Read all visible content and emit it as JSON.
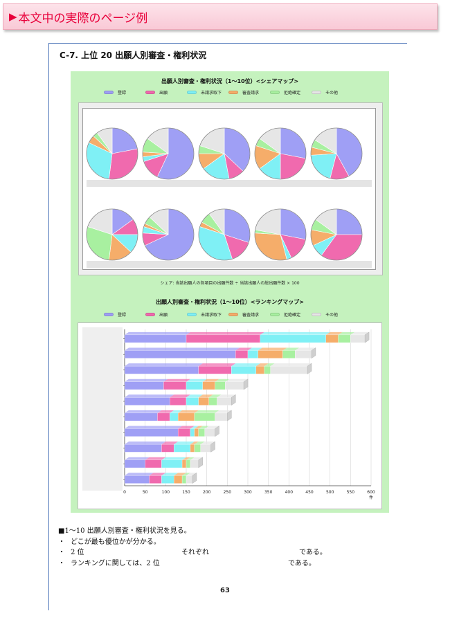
{
  "banner": {
    "marker": "▶",
    "title": "本文中の実際のページ例"
  },
  "section": {
    "title": "C-7.  上位 20 出願人別審査・権利状況"
  },
  "colors": {
    "登録": "#9f9ff5",
    "出願": "#f06aae",
    "未請求取下": "#7ff0f5",
    "審査請求": "#f5ad6a",
    "拒絶確定": "#a8f0a0",
    "その他": "#e6e6e6"
  },
  "legend_items": [
    "登録",
    "出願",
    "未請求取下",
    "審査請求",
    "拒絶確定",
    "その他"
  ],
  "chart_data": [
    {
      "type": "pie",
      "title": "出願人別審査・権利状況（1〜10位）<シェアマップ>",
      "series_names": [
        "登録",
        "出願",
        "未請求取下",
        "審査請求",
        "拒絶確定",
        "その他"
      ],
      "pies": [
        [
          22,
          30,
          30,
          5,
          3,
          10
        ],
        [
          57,
          13,
          3,
          3,
          9,
          15
        ],
        [
          37,
          10,
          18,
          10,
          5,
          20
        ],
        [
          28,
          22,
          15,
          15,
          5,
          15
        ],
        [
          42,
          12,
          20,
          5,
          5,
          16
        ],
        [
          15,
          10,
          12,
          15,
          28,
          20
        ],
        [
          68,
          8,
          4,
          2,
          5,
          13
        ],
        [
          30,
          15,
          35,
          3,
          7,
          10
        ],
        [
          28,
          15,
          3,
          30,
          2,
          22
        ],
        [
          25,
          35,
          8,
          10,
          7,
          15
        ]
      ],
      "note": "シェア: 当該出願人の各項目の出願件数 ÷ 当該出願人の総出願件数 × 100"
    },
    {
      "type": "bar",
      "title": "出願人別審査・権利状況（1〜10位）<ランキングマップ>",
      "orientation": "horizontal-stacked",
      "series_names": [
        "登録",
        "出願",
        "未請求取下",
        "審査請求",
        "拒絶確定",
        "その他"
      ],
      "rows": [
        [
          150,
          180,
          160,
          30,
          30,
          35
        ],
        [
          270,
          30,
          25,
          60,
          30,
          40
        ],
        [
          180,
          80,
          60,
          20,
          15,
          90
        ],
        [
          95,
          55,
          40,
          30,
          25,
          45
        ],
        [
          110,
          40,
          30,
          25,
          20,
          35
        ],
        [
          80,
          30,
          20,
          40,
          50,
          30
        ],
        [
          130,
          30,
          10,
          10,
          15,
          25
        ],
        [
          90,
          30,
          40,
          10,
          15,
          25
        ],
        [
          50,
          40,
          50,
          10,
          10,
          20
        ],
        [
          60,
          30,
          30,
          20,
          10,
          15
        ]
      ],
      "x_ticks": [
        "0",
        "50",
        "100",
        "150",
        "200",
        "250",
        "300",
        "350",
        "400",
        "450",
        "500",
        "550",
        "600"
      ],
      "x_unit": "件",
      "xlim": [
        0,
        600
      ]
    }
  ],
  "notes": {
    "heading": "■1〜10 出願人別審査・権利状況を見る。",
    "bullets": [
      {
        "mark": "・",
        "left": "どこが最も優位かが分かる。"
      },
      {
        "mark": "・",
        "left": "2 位",
        "mid": "それぞれ",
        "right": "である。"
      },
      {
        "mark": "・",
        "left": "ランキングに関しては、2 位",
        "right": "である。"
      }
    ]
  },
  "page_number": "63"
}
